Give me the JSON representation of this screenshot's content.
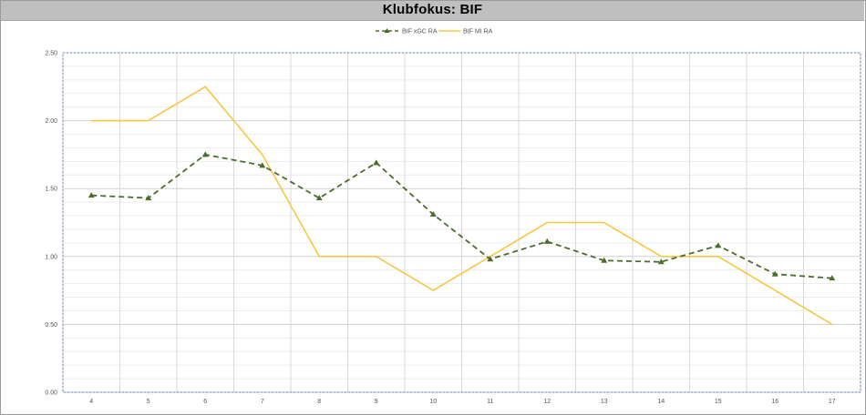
{
  "title": "Klubfokus:  BIF",
  "chart_data": {
    "type": "line",
    "title": "Klubfokus:  BIF",
    "xlabel": "",
    "ylabel": "",
    "x": [
      4,
      5,
      6,
      7,
      8,
      9,
      10,
      11,
      12,
      13,
      14,
      15,
      16,
      17
    ],
    "ylim": [
      0,
      2.5
    ],
    "yticks": [
      "0.00",
      "0.50",
      "1.00",
      "1.50",
      "2.00",
      "2.50"
    ],
    "grid": true,
    "legend_position": "top-center",
    "series": [
      {
        "name": "BIF xGC RA",
        "color": "#4e6b2e",
        "style": "dashed",
        "marker": "triangle",
        "values": [
          1.45,
          1.43,
          1.75,
          1.67,
          1.43,
          1.69,
          1.31,
          0.98,
          1.11,
          0.97,
          0.96,
          1.08,
          0.87,
          0.84
        ]
      },
      {
        "name": "BIF MI RA",
        "color": "#f5c842",
        "style": "solid",
        "marker": "none",
        "values": [
          2.0,
          2.0,
          2.25,
          1.75,
          1.0,
          1.0,
          0.75,
          1.0,
          1.25,
          1.25,
          1.0,
          1.0,
          0.75,
          0.5
        ]
      }
    ]
  }
}
